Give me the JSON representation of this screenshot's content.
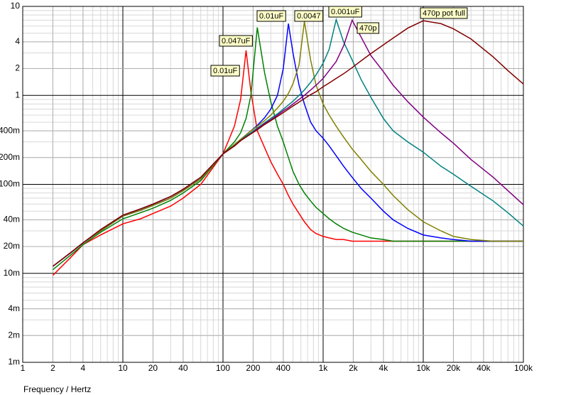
{
  "chart_data": {
    "type": "line",
    "x_log": true,
    "y_log": true,
    "grid": true,
    "minor_grid": true,
    "x_label": "Frequency / Hertz",
    "xlim": [
      1,
      100000
    ],
    "xticks": [
      1,
      2,
      4,
      10,
      20,
      40,
      100,
      200,
      400,
      {
        "value": 1000,
        "label": "1k"
      },
      {
        "value": 2000,
        "label": "2k"
      },
      {
        "value": 4000,
        "label": "4k"
      },
      {
        "value": 10000,
        "label": "10k"
      },
      {
        "value": 20000,
        "label": "20k"
      },
      {
        "value": 40000,
        "label": "40k"
      },
      {
        "value": 100000,
        "label": "100k"
      }
    ],
    "ylim": [
      0.001,
      10
    ],
    "yticks": [
      10,
      4,
      2,
      1,
      {
        "value": 0.4,
        "label": "400m"
      },
      {
        "value": 0.2,
        "label": "200m"
      },
      {
        "value": 0.1,
        "label": "100m"
      },
      {
        "value": 0.04,
        "label": "40m"
      },
      {
        "value": 0.02,
        "label": "20m"
      },
      {
        "value": 0.01,
        "label": "10m"
      },
      {
        "value": 0.004,
        "label": "4m"
      },
      {
        "value": 0.002,
        "label": "2m"
      },
      {
        "value": 0.001,
        "label": "1m"
      }
    ],
    "x": [
      2,
      3,
      4,
      6,
      10,
      15,
      20,
      30,
      40,
      60,
      100,
      130,
      150,
      170,
      190,
      220,
      260,
      300,
      350,
      400,
      450,
      500,
      575,
      650,
      750,
      850,
      1000,
      1150,
      1350,
      1600,
      1950,
      2400,
      3000,
      4000,
      5000,
      7000,
      10000,
      15000,
      20000,
      30000,
      50000,
      70000,
      100000
    ],
    "series": [
      {
        "name": "0.01uF",
        "color": "#ff0000",
        "values": [
          0.0095,
          0.015,
          0.021,
          0.027,
          0.036,
          0.041,
          0.047,
          0.057,
          0.07,
          0.1,
          0.22,
          0.45,
          0.9,
          3.2,
          1.1,
          0.4,
          0.26,
          0.18,
          0.13,
          0.1,
          0.075,
          0.06,
          0.047,
          0.038,
          0.031,
          0.028,
          0.026,
          0.025,
          0.024,
          0.024,
          0.023,
          0.023,
          0.023,
          0.023,
          0.023,
          0.023,
          0.023,
          0.023,
          0.023,
          0.023,
          0.023,
          0.023,
          0.023
        ]
      },
      {
        "name": "0.047uF",
        "color": "#008000",
        "values": [
          0.011,
          0.016,
          0.021,
          0.029,
          0.041,
          0.048,
          0.054,
          0.066,
          0.08,
          0.11,
          0.22,
          0.3,
          0.38,
          0.55,
          1.0,
          5.8,
          1.8,
          0.85,
          0.45,
          0.3,
          0.2,
          0.14,
          0.1,
          0.08,
          0.065,
          0.055,
          0.047,
          0.041,
          0.036,
          0.032,
          0.029,
          0.027,
          0.025,
          0.024,
          0.023,
          0.023,
          0.023,
          0.023,
          0.023,
          0.023,
          0.023,
          0.023,
          0.023
        ]
      },
      {
        "name": "0.01uF",
        "color": "#0000ff",
        "values": [
          0.012,
          0.017,
          0.022,
          0.03,
          0.044,
          0.051,
          0.058,
          0.07,
          0.085,
          0.115,
          0.22,
          0.28,
          0.32,
          0.36,
          0.4,
          0.46,
          0.56,
          0.7,
          1.0,
          2.0,
          6.4,
          3.0,
          1.3,
          0.8,
          0.5,
          0.4,
          0.33,
          0.27,
          0.21,
          0.16,
          0.12,
          0.09,
          0.07,
          0.05,
          0.04,
          0.032,
          0.027,
          0.025,
          0.024,
          0.023,
          0.023,
          0.023,
          0.023
        ]
      },
      {
        "name": "0.0047",
        "color": "#808000",
        "values": [
          0.012,
          0.017,
          0.022,
          0.03,
          0.044,
          0.051,
          0.058,
          0.07,
          0.085,
          0.115,
          0.22,
          0.28,
          0.32,
          0.36,
          0.4,
          0.45,
          0.52,
          0.6,
          0.72,
          0.86,
          1.05,
          1.35,
          2.2,
          6.8,
          2.5,
          1.3,
          0.8,
          0.6,
          0.45,
          0.34,
          0.25,
          0.19,
          0.14,
          0.1,
          0.075,
          0.052,
          0.038,
          0.03,
          0.026,
          0.024,
          0.023,
          0.023,
          0.023
        ]
      },
      {
        "name": "0.001uF",
        "color": "#008080",
        "values": [
          0.012,
          0.017,
          0.022,
          0.031,
          0.045,
          0.053,
          0.06,
          0.073,
          0.088,
          0.12,
          0.22,
          0.27,
          0.31,
          0.35,
          0.38,
          0.43,
          0.49,
          0.55,
          0.62,
          0.7,
          0.78,
          0.86,
          1.0,
          1.15,
          1.4,
          1.7,
          2.3,
          3.3,
          7.1,
          4.0,
          2.5,
          1.5,
          0.95,
          0.55,
          0.4,
          0.3,
          0.23,
          0.16,
          0.13,
          0.095,
          0.065,
          0.048,
          0.034
        ]
      },
      {
        "name": "470p",
        "color": "#800080",
        "values": [
          0.012,
          0.017,
          0.022,
          0.031,
          0.045,
          0.053,
          0.06,
          0.073,
          0.088,
          0.12,
          0.22,
          0.27,
          0.31,
          0.34,
          0.37,
          0.42,
          0.48,
          0.53,
          0.6,
          0.67,
          0.73,
          0.8,
          0.9,
          1.0,
          1.15,
          1.3,
          1.55,
          1.9,
          2.4,
          3.6,
          7.0,
          4.5,
          2.8,
          1.85,
          1.3,
          0.85,
          0.57,
          0.38,
          0.29,
          0.19,
          0.12,
          0.085,
          0.059
        ]
      },
      {
        "name": "470p pot full",
        "color": "#800000",
        "values": [
          0.012,
          0.017,
          0.022,
          0.031,
          0.045,
          0.053,
          0.06,
          0.073,
          0.088,
          0.12,
          0.22,
          0.27,
          0.31,
          0.34,
          0.37,
          0.41,
          0.47,
          0.52,
          0.58,
          0.64,
          0.7,
          0.76,
          0.84,
          0.92,
          1.02,
          1.1,
          1.25,
          1.38,
          1.55,
          1.75,
          2.05,
          2.45,
          2.95,
          3.7,
          4.4,
          5.7,
          6.9,
          6.4,
          5.6,
          4.3,
          2.7,
          1.9,
          1.34
        ]
      }
    ]
  }
}
